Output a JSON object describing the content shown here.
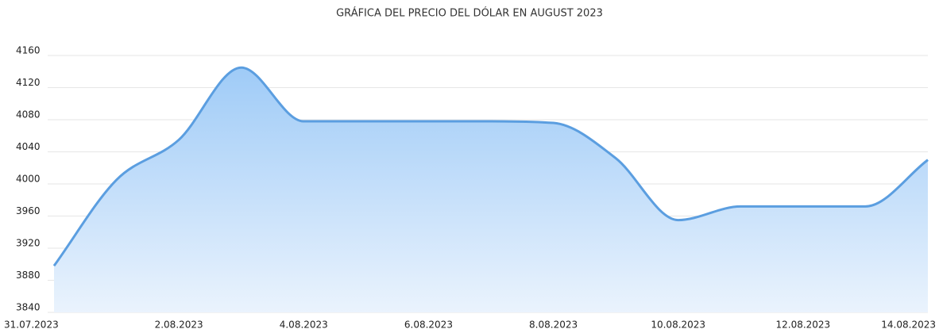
{
  "chart_data": {
    "type": "area",
    "title": "GRÁFICA DEL PRECIO DEL DÓLAR EN AUGUST 2023",
    "categories": [
      "31.07.2023",
      null,
      "2.08.2023",
      null,
      "4.08.2023",
      null,
      "6.08.2023",
      null,
      "8.08.2023",
      null,
      "10.08.2023",
      null,
      "12.08.2023",
      null,
      "14.08.2023"
    ],
    "values": [
      3898,
      4005,
      4055,
      4145,
      4078,
      4078,
      4078,
      4078,
      4076,
      4032,
      3955,
      3972,
      3972,
      3972,
      4030
    ],
    "color": "#5b9ee0",
    "ylim": [
      3840,
      4160
    ],
    "yticks": [
      3840,
      3880,
      3920,
      3960,
      4000,
      4040,
      4080,
      4120,
      4160
    ],
    "grid": true
  }
}
